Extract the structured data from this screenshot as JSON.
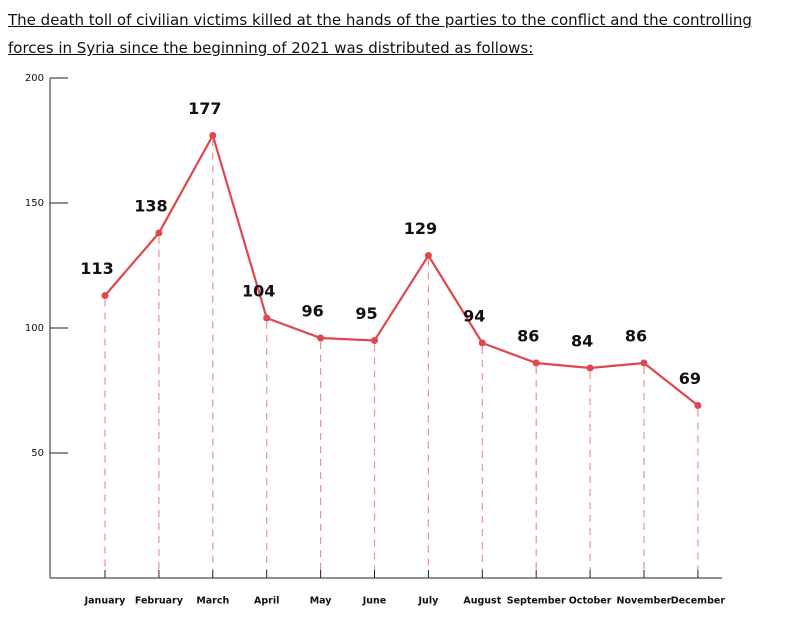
{
  "chart_data": {
    "type": "line",
    "title": "The death toll of civilian victims killed at the hands of the parties to the conflict and the controlling forces in Syria since the beginning of 2021 was distributed as follows:",
    "categories": [
      "January",
      "February",
      "March",
      "April",
      "May",
      "June",
      "July",
      "August",
      "September",
      "October",
      "November",
      "December"
    ],
    "values": [
      113,
      138,
      177,
      104,
      96,
      95,
      129,
      94,
      86,
      84,
      86,
      69
    ],
    "color": "#e0474c",
    "ylim": [
      0,
      200
    ],
    "yticks": [
      50,
      100,
      150,
      200
    ],
    "drop_lines": true
  }
}
